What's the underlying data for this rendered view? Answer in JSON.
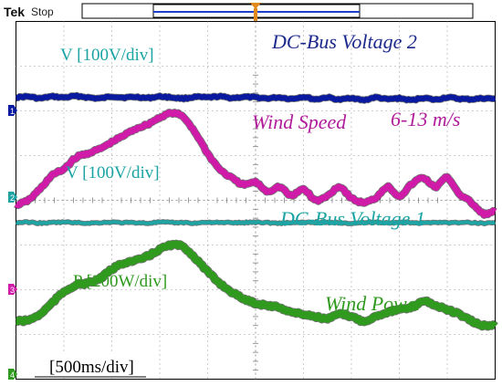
{
  "header": {
    "brand": "Tek",
    "status": "Stop"
  },
  "colors": {
    "background": "#ffffff",
    "grid": "#7f7f7f",
    "dc_bus_2": "#0a1aa0",
    "wind_speed": "#d01aa8",
    "dc_bus_1": "#1fa3a3",
    "wind_power": "#2f9a1e"
  },
  "chart_data": {
    "type": "line",
    "title": "",
    "xlabel": "",
    "ylabel": "",
    "grid": true,
    "x_divisions": 10,
    "y_divisions": 8,
    "timebase": "[500ms/div]",
    "x": [
      0,
      0.25,
      0.5,
      0.75,
      1.0,
      1.25,
      1.5,
      1.75,
      2.0,
      2.25,
      2.5,
      2.75,
      3.0,
      3.25,
      3.5,
      3.75,
      4.0,
      4.25,
      4.5,
      4.75,
      5.0,
      5.25,
      5.5,
      5.75,
      6.0,
      6.25,
      6.5,
      6.75,
      7.0,
      7.25,
      7.5,
      7.75,
      8.0,
      8.25,
      8.5,
      8.75,
      9.0,
      9.25,
      9.5,
      9.75,
      10.0
    ],
    "series": [
      {
        "name": "DC-Bus Voltage 2",
        "scale": "V [100V/div]",
        "color_key": "dc_bus_2",
        "values": [
          6.3,
          6.32,
          6.28,
          6.32,
          6.3,
          6.33,
          6.3,
          6.28,
          6.32,
          6.3,
          6.31,
          6.29,
          6.32,
          6.3,
          6.28,
          6.31,
          6.3,
          6.32,
          6.29,
          6.31,
          6.3,
          6.28,
          6.3,
          6.27,
          6.31,
          6.26,
          6.3,
          6.25,
          6.29,
          6.24,
          6.3,
          6.26,
          6.28,
          6.24,
          6.29,
          6.25,
          6.3,
          6.27,
          6.26,
          6.28,
          6.27
        ]
      },
      {
        "name": "Wind Speed",
        "label": "Wind Speed",
        "range": "6-13 m/s",
        "color_key": "wind_speed",
        "values": [
          3.9,
          4.0,
          4.25,
          4.55,
          4.7,
          4.95,
          5.05,
          5.15,
          5.3,
          5.45,
          5.6,
          5.7,
          5.85,
          5.95,
          5.85,
          5.5,
          5.05,
          4.7,
          4.5,
          4.35,
          4.4,
          4.2,
          4.3,
          4.1,
          4.25,
          4.0,
          4.1,
          4.3,
          4.05,
          3.95,
          4.05,
          4.3,
          4.1,
          4.35,
          4.5,
          4.3,
          4.5,
          4.15,
          3.95,
          3.7,
          3.75
        ]
      },
      {
        "name": "DC-Bus Voltage 1",
        "scale": "V [100V/div]",
        "color_key": "dc_bus_1",
        "values": [
          3.5,
          3.51,
          3.49,
          3.5,
          3.51,
          3.5,
          3.49,
          3.5,
          3.51,
          3.5,
          3.5,
          3.49,
          3.51,
          3.5,
          3.5,
          3.49,
          3.51,
          3.5,
          3.5,
          3.5,
          3.51,
          3.5,
          3.49,
          3.5,
          3.5,
          3.51,
          3.5,
          3.5,
          3.49,
          3.5,
          3.51,
          3.5,
          3.5,
          3.5,
          3.49,
          3.51,
          3.5,
          3.5,
          3.5,
          3.49,
          3.5
        ]
      },
      {
        "name": "Wind Power",
        "label": "Wind Power",
        "scale": "P [200W/div]",
        "color_key": "wind_power",
        "values": [
          1.3,
          1.32,
          1.45,
          1.7,
          1.95,
          2.1,
          2.15,
          2.25,
          2.45,
          2.6,
          2.65,
          2.75,
          2.9,
          3.0,
          2.95,
          2.7,
          2.4,
          2.15,
          1.95,
          1.8,
          1.7,
          1.65,
          1.6,
          1.5,
          1.45,
          1.4,
          1.35,
          1.45,
          1.4,
          1.3,
          1.4,
          1.5,
          1.55,
          1.6,
          1.75,
          1.65,
          1.55,
          1.45,
          1.3,
          1.2,
          1.2
        ]
      }
    ]
  },
  "annotations": {
    "v100_top": "V [100V/div]",
    "dc_bus_2": "DC-Bus Voltage 2",
    "wind_speed": "Wind Speed",
    "speed_range": "6-13 m/s",
    "v100_mid": "V [100V/div]",
    "dc_bus_1": "DC-Bus Voltage 1",
    "p200": "P [200W/div]",
    "wind_power": "Wind Power",
    "timebase": "[500ms/div]"
  },
  "channel_markers": [
    "1",
    "2",
    "3",
    "4"
  ]
}
